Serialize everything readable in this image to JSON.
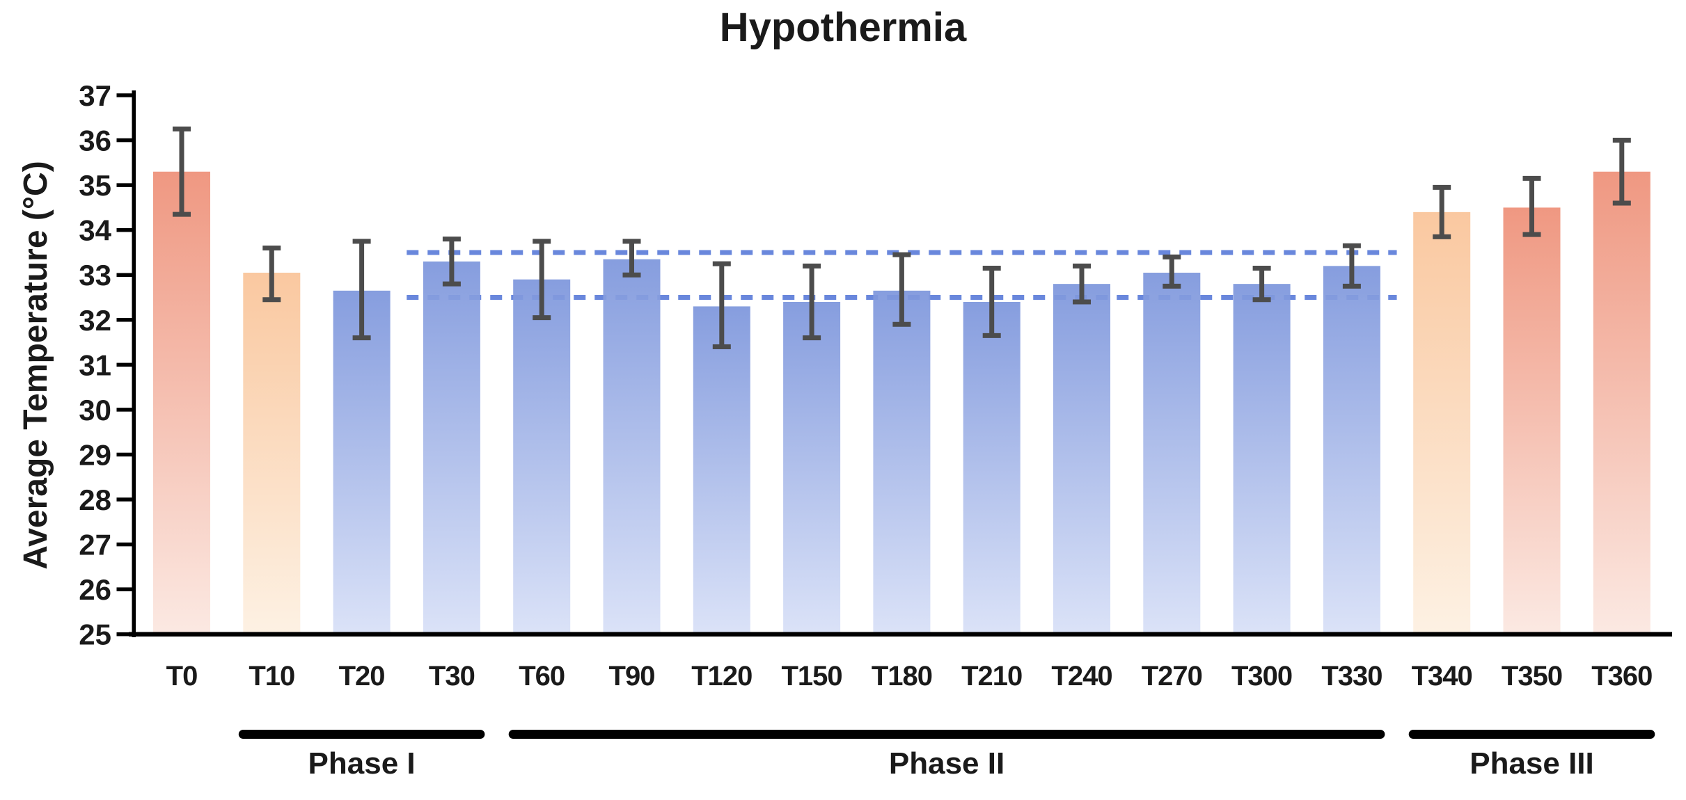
{
  "title": "Hypothermia",
  "y_axis": {
    "label": "Average Temperature (°C)",
    "min": 25,
    "max": 37,
    "ticks": [
      37,
      36,
      35,
      34,
      33,
      32,
      31,
      30,
      29,
      28,
      27,
      26,
      25
    ]
  },
  "chart_data": {
    "type": "bar",
    "title": "Hypothermia",
    "xlabel": "",
    "ylabel": "Average Temperature (°C)",
    "ylim": [
      25,
      37
    ],
    "grid": false,
    "legend": false,
    "categories": [
      "T0",
      "T10",
      "T20",
      "T30",
      "T60",
      "T90",
      "T120",
      "T150",
      "T180",
      "T210",
      "T240",
      "T270",
      "T300",
      "T330",
      "T340",
      "T350",
      "T360"
    ],
    "series": [
      {
        "name": "Average Temperature (°C)",
        "values": [
          35.3,
          33.05,
          32.65,
          33.3,
          32.9,
          33.35,
          32.3,
          32.4,
          32.65,
          32.4,
          32.8,
          33.05,
          32.8,
          33.2,
          34.4,
          34.5,
          35.3
        ],
        "error_plus": [
          0.95,
          0.55,
          1.1,
          0.5,
          0.85,
          0.4,
          0.95,
          0.8,
          0.8,
          0.75,
          0.4,
          0.35,
          0.35,
          0.45,
          0.55,
          0.65,
          0.7
        ],
        "error_minus": [
          0.95,
          0.6,
          1.05,
          0.5,
          0.85,
          0.35,
          0.9,
          0.8,
          0.75,
          0.75,
          0.4,
          0.3,
          0.35,
          0.45,
          0.55,
          0.6,
          0.7
        ]
      }
    ],
    "bar_color_groups": [
      "salmon",
      "lightOrange",
      "blue",
      "blue",
      "blue",
      "blue",
      "blue",
      "blue",
      "blue",
      "blue",
      "blue",
      "blue",
      "blue",
      "blue",
      "lightOrange",
      "salmon",
      "salmon"
    ],
    "colors": {
      "bar_gradients": {
        "salmon": {
          "top": "#EE9078",
          "bottom": "#FBE7E0"
        },
        "lightOrange": {
          "top": "#F9C499",
          "bottom": "#FDF0E1"
        },
        "blue": {
          "top": "#7D96DC",
          "bottom": "#D8E0F7"
        }
      },
      "reference_line": "#6987DC",
      "error_bar": "#4C4C4C",
      "axis": "#000000",
      "text": "#1A1A1A"
    },
    "reference_lines": [
      {
        "value": 33.5,
        "style": "dashed",
        "from_category": "T30",
        "to_category": "T330"
      },
      {
        "value": 32.5,
        "style": "dashed",
        "from_category": "T30",
        "to_category": "T330"
      }
    ],
    "phases": [
      {
        "label": "Phase I",
        "from_category": "T10",
        "to_category": "T30"
      },
      {
        "label": "Phase II",
        "from_category": "T60",
        "to_category": "T330"
      },
      {
        "label": "Phase III",
        "from_category": "T340",
        "to_category": "T360"
      }
    ]
  }
}
